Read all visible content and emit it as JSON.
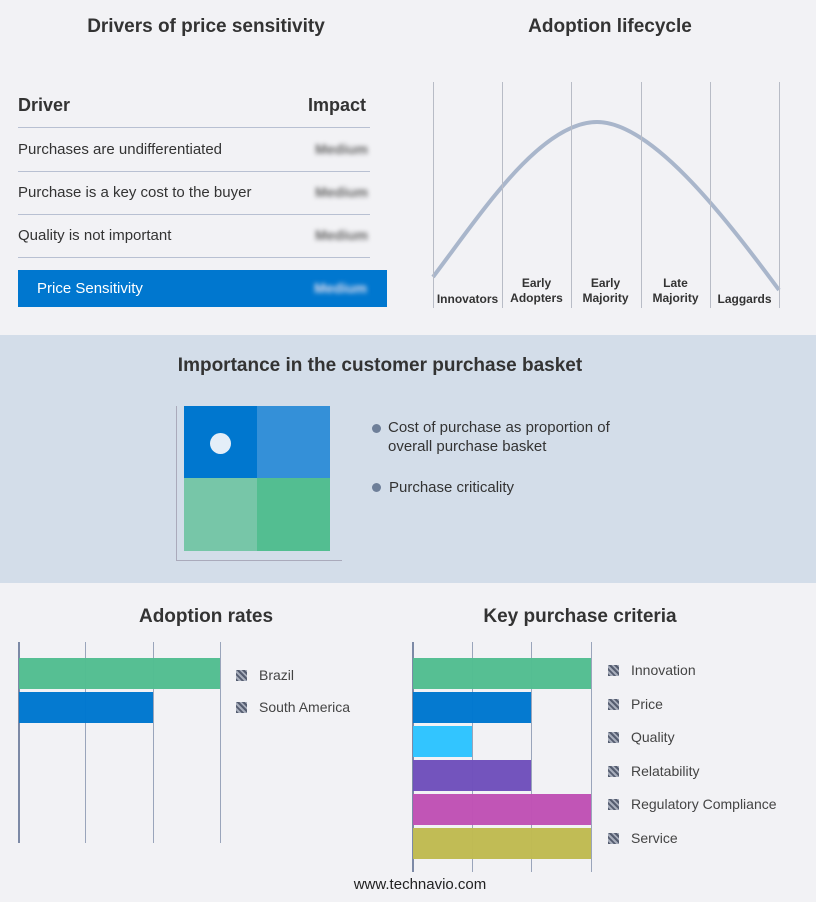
{
  "drivers": {
    "title": "Drivers of price sensitivity",
    "col_driver": "Driver",
    "col_impact": "Impact",
    "rows": [
      {
        "driver": "Purchases are undifferentiated",
        "impact": "Medium"
      },
      {
        "driver": "Purchase is a key cost to the buyer",
        "impact": "Medium"
      },
      {
        "driver": "Quality is not important",
        "impact": "Medium"
      }
    ],
    "summary": {
      "label": "Price Sensitivity",
      "impact": "Medium"
    },
    "accent": "#0077cf"
  },
  "lifecycle": {
    "title": "Adoption lifecycle",
    "stages": [
      [
        "Innovators"
      ],
      [
        "Early",
        "Adopters"
      ],
      [
        "Early",
        "Majority"
      ],
      [
        "Late",
        "Majority"
      ],
      [
        "Laggards"
      ]
    ],
    "curve_color": "#a9b6cb"
  },
  "basket": {
    "title": "Importance in the customer purchase basket",
    "legend": [
      "Cost of purchase as proportion of overall purchase basket",
      "Purchase criticality"
    ],
    "colors": [
      "#0077cf",
      "#3490d8",
      "#77c6a8",
      "#53be91"
    ]
  },
  "footer": "www.technavio.com",
  "chart_data": [
    {
      "type": "bar",
      "orientation": "horizontal",
      "title": "Adoption rates",
      "categories": [
        "Brazil",
        "South America"
      ],
      "values": [
        3,
        2
      ],
      "xlim": [
        0,
        3
      ],
      "grid": true,
      "legend": "right",
      "colors": [
        "#53be91",
        "#0077cf"
      ]
    },
    {
      "type": "bar",
      "orientation": "horizontal",
      "title": "Key purchase criteria",
      "categories": [
        "Innovation",
        "Price",
        "Quality",
        "Relatability",
        "Regulatory Compliance",
        "Service"
      ],
      "values": [
        3,
        2,
        1,
        2,
        3,
        3
      ],
      "xlim": [
        0,
        3
      ],
      "grid": true,
      "legend": "right",
      "colors": [
        "#53be91",
        "#0077cf",
        "#2ec4ff",
        "#7051bc",
        "#c052b5",
        "#c0bb52"
      ]
    }
  ]
}
